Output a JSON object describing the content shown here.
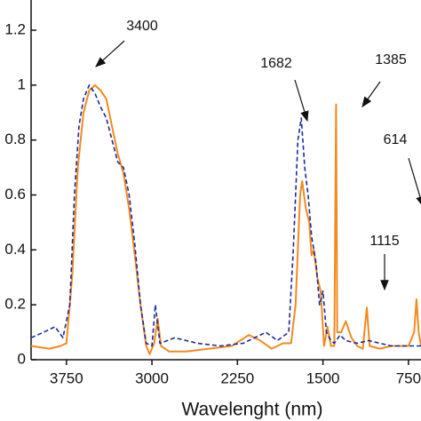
{
  "chart_data": {
    "type": "line",
    "xlabel": "Wavelenght (nm)",
    "xlim": [
      4060,
      640
    ],
    "ylim": [
      0,
      1.31
    ],
    "xticks": [
      3750,
      3000,
      2250,
      1500,
      750
    ],
    "yticks": [
      0,
      0.2,
      0.4,
      0.6,
      0.8,
      1.0,
      1.2
    ],
    "annotations": [
      "3400",
      "1682",
      "1385",
      "1115",
      "614"
    ],
    "series": [
      {
        "color": "#f28a1e",
        "dash": false,
        "x": [
          4060,
          3900,
          3800,
          3750,
          3700,
          3650,
          3600,
          3550,
          3500,
          3450,
          3400,
          3350,
          3300,
          3250,
          3200,
          3150,
          3100,
          3050,
          3020,
          2980,
          2950,
          2920,
          2850,
          2700,
          2500,
          2300,
          2150,
          2050,
          1950,
          1850,
          1780,
          1740,
          1700,
          1682,
          1650,
          1620,
          1600,
          1580,
          1550,
          1520,
          1490,
          1460,
          1430,
          1400,
          1385,
          1375,
          1340,
          1300,
          1250,
          1200,
          1150,
          1115,
          1090,
          1000,
          900,
          750,
          700,
          680,
          660,
          640
        ],
        "values": [
          0.05,
          0.04,
          0.05,
          0.06,
          0.3,
          0.7,
          0.9,
          0.98,
          1.0,
          0.98,
          0.95,
          0.85,
          0.75,
          0.68,
          0.55,
          0.38,
          0.2,
          0.05,
          0.02,
          0.06,
          0.15,
          0.05,
          0.03,
          0.03,
          0.04,
          0.05,
          0.09,
          0.07,
          0.04,
          0.06,
          0.06,
          0.2,
          0.6,
          0.65,
          0.55,
          0.5,
          0.38,
          0.4,
          0.3,
          0.25,
          0.05,
          0.12,
          0.05,
          0.05,
          0.93,
          0.1,
          0.1,
          0.14,
          0.08,
          0.05,
          0.04,
          0.19,
          0.05,
          0.04,
          0.05,
          0.05,
          0.1,
          0.22,
          0.1,
          0.05
        ]
      },
      {
        "color": "#1a2a9a",
        "dash": true,
        "x": [
          4060,
          3950,
          3850,
          3780,
          3720,
          3680,
          3640,
          3600,
          3550,
          3500,
          3450,
          3400,
          3350,
          3300,
          3250,
          3200,
          3150,
          3100,
          3050,
          3000,
          2970,
          2930,
          2800,
          2600,
          2400,
          2200,
          2000,
          1900,
          1800,
          1760,
          1720,
          1690,
          1660,
          1630,
          1600,
          1560,
          1530,
          1500,
          1470,
          1430,
          1400,
          1350,
          1300,
          1200,
          1100,
          1000,
          900,
          750,
          640
        ],
        "values": [
          0.08,
          0.1,
          0.12,
          0.08,
          0.2,
          0.6,
          0.85,
          0.95,
          1.0,
          0.97,
          0.92,
          0.88,
          0.8,
          0.72,
          0.7,
          0.6,
          0.42,
          0.2,
          0.06,
          0.05,
          0.2,
          0.06,
          0.08,
          0.06,
          0.05,
          0.06,
          0.1,
          0.07,
          0.1,
          0.4,
          0.8,
          0.88,
          0.7,
          0.6,
          0.45,
          0.35,
          0.2,
          0.25,
          0.1,
          0.07,
          0.06,
          0.09,
          0.07,
          0.06,
          0.07,
          0.06,
          0.05,
          0.05,
          0.05
        ]
      }
    ]
  }
}
